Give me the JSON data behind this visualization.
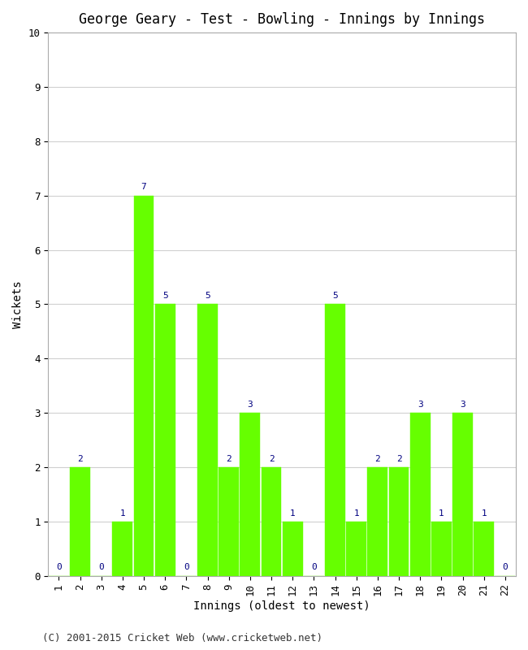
{
  "title": "George Geary - Test - Bowling - Innings by Innings",
  "xlabel": "Innings (oldest to newest)",
  "ylabel": "Wickets",
  "innings": [
    1,
    2,
    3,
    4,
    5,
    6,
    7,
    8,
    9,
    10,
    11,
    12,
    13,
    14,
    15,
    16,
    17,
    18,
    19,
    20,
    21,
    22
  ],
  "wickets": [
    0,
    2,
    0,
    1,
    7,
    5,
    0,
    5,
    2,
    3,
    2,
    1,
    0,
    5,
    1,
    2,
    2,
    3,
    1,
    3,
    1,
    0
  ],
  "bar_color": "#66ff00",
  "bar_edge_color": "#66ff00",
  "label_color": "#000080",
  "ylim": [
    0,
    10
  ],
  "yticks": [
    0,
    1,
    2,
    3,
    4,
    5,
    6,
    7,
    8,
    9,
    10
  ],
  "background_color": "#ffffff",
  "grid_color": "#d0d0d0",
  "title_fontsize": 12,
  "axis_label_fontsize": 10,
  "tick_fontsize": 9,
  "label_fontsize": 8,
  "footer": "(C) 2001-2015 Cricket Web (www.cricketweb.net)",
  "footer_fontsize": 9
}
